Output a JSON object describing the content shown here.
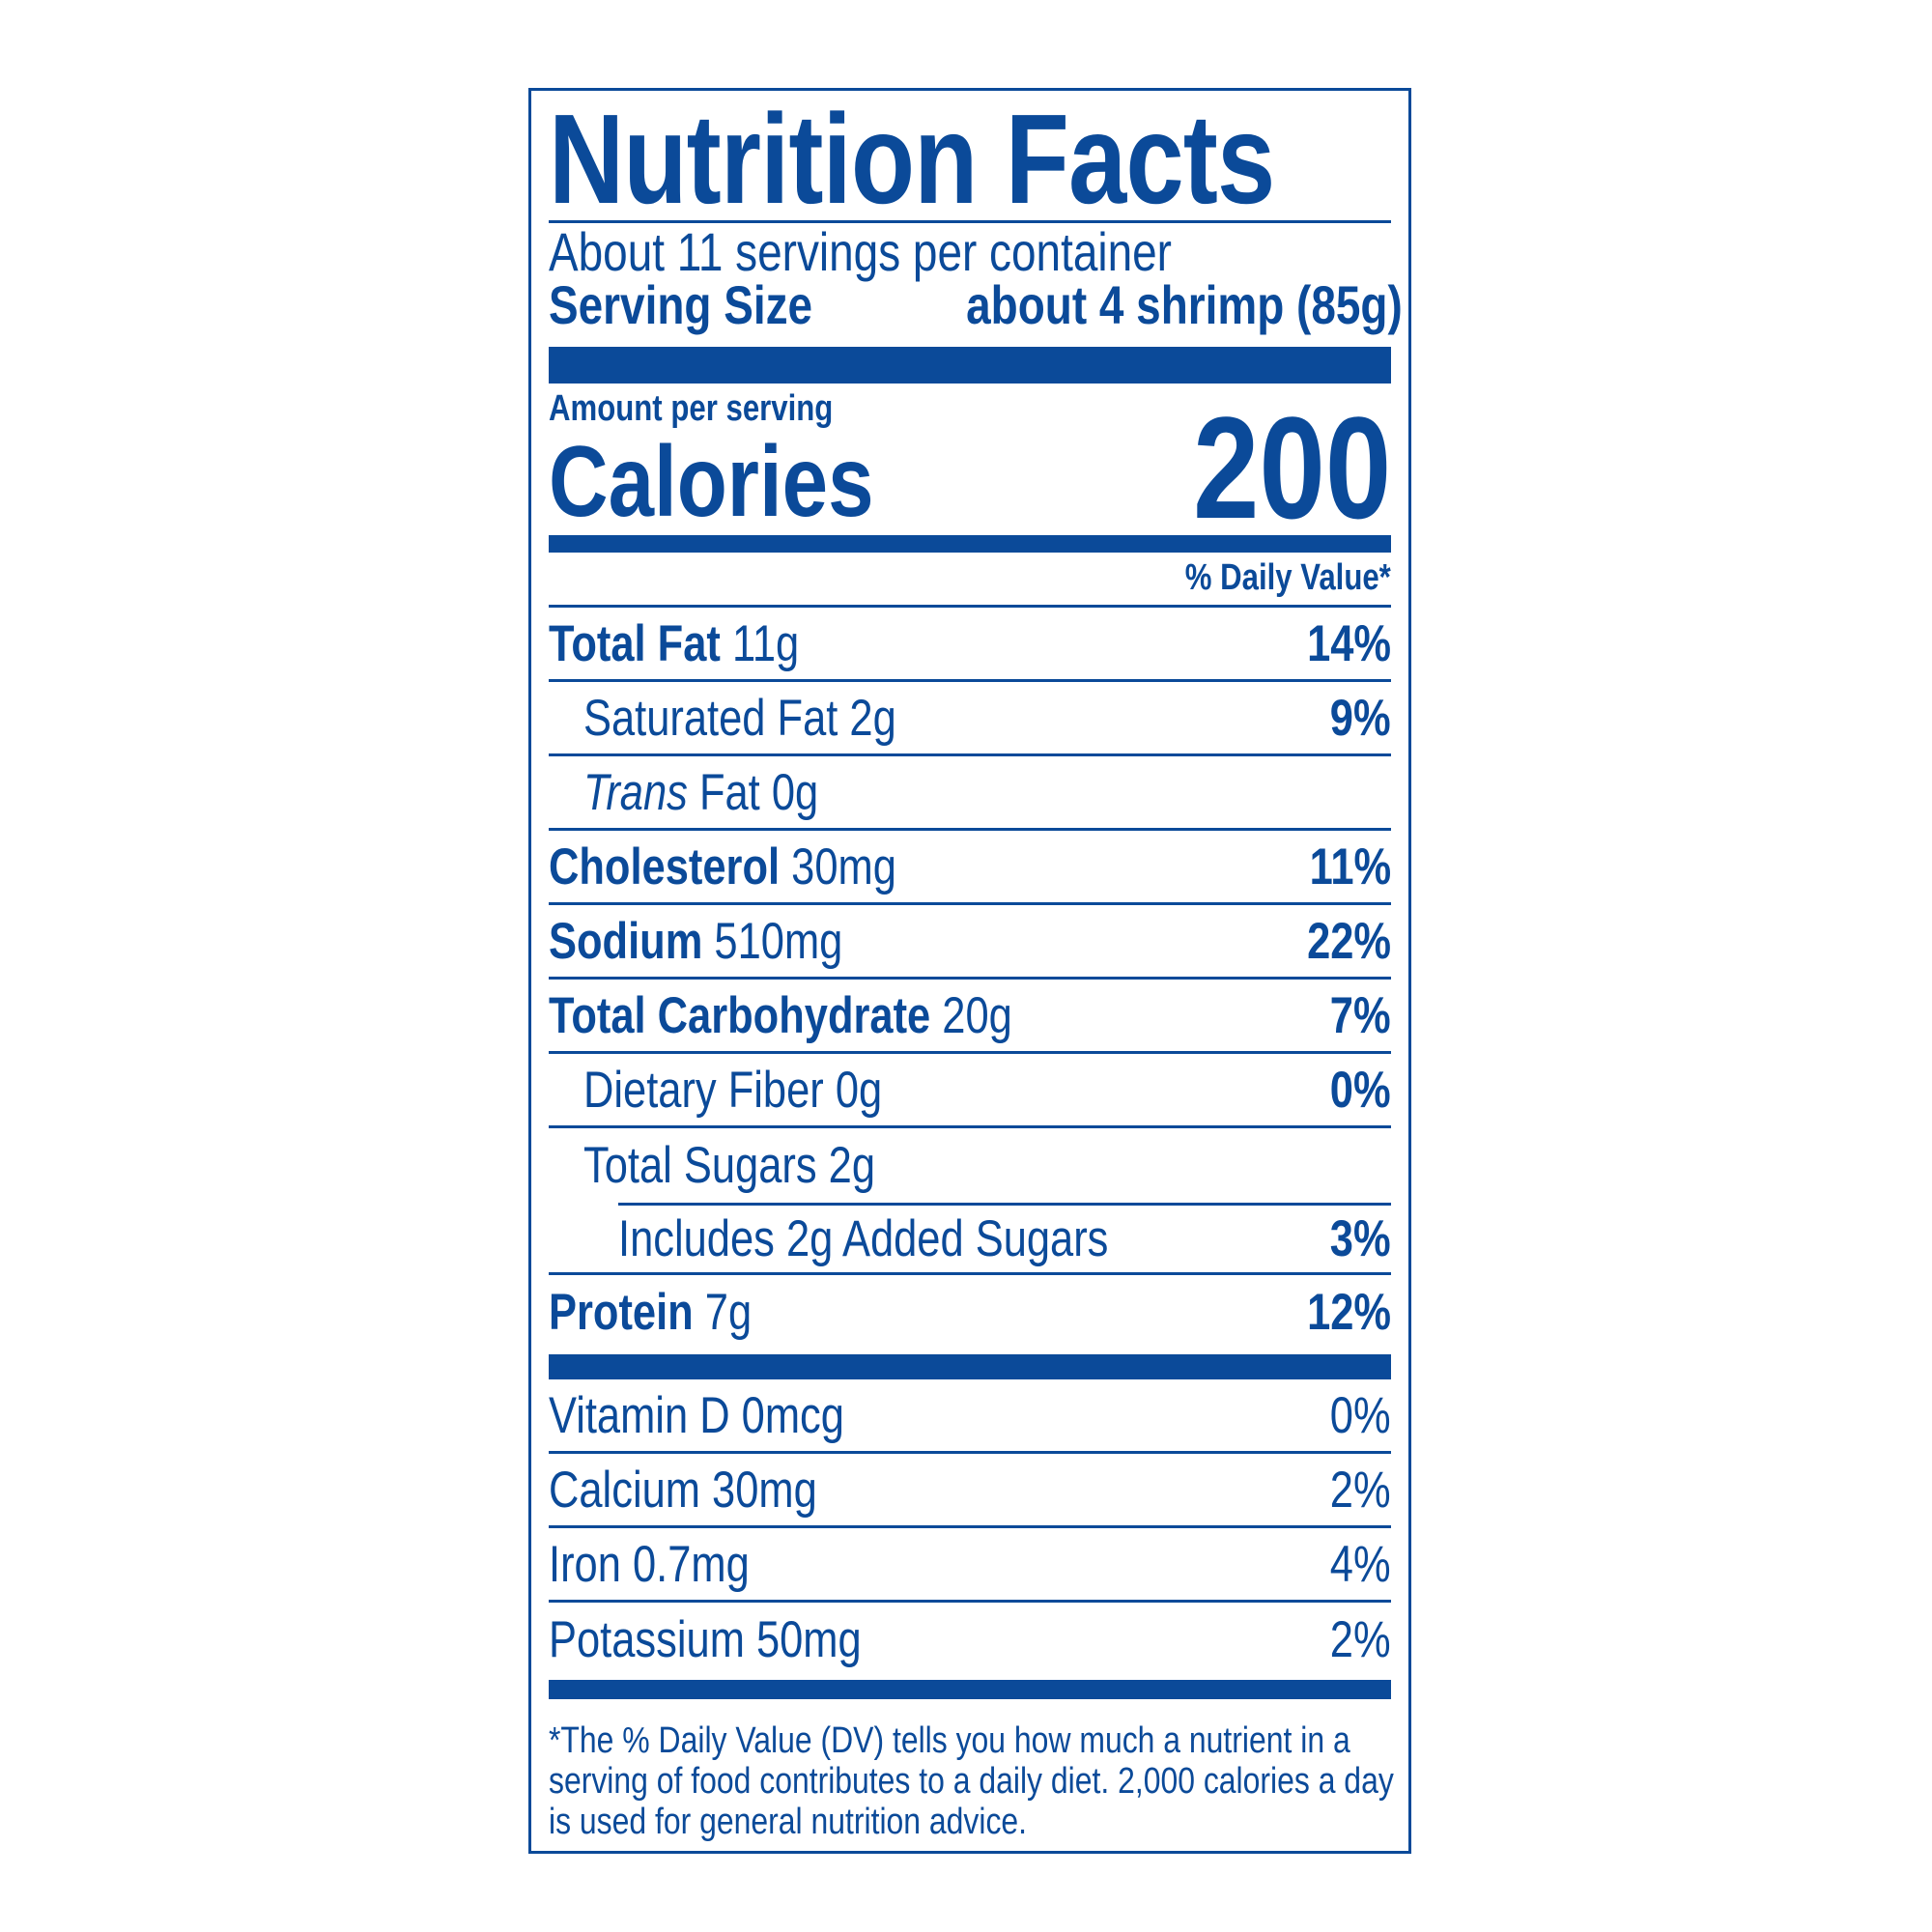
{
  "title": "Nutrition Facts",
  "servings": "About 11 servings per container",
  "serving_size": {
    "label": "Serving Size",
    "value": "about 4 shrimp (85g)"
  },
  "amount_per_serving": "Amount per serving",
  "calories": {
    "label": "Calories",
    "value": "200"
  },
  "dv_header": "% Daily Value*",
  "nutrients": [
    {
      "name": "Total Fat",
      "amount": "11g",
      "dv": "14%"
    },
    {
      "name": "Saturated Fat 2g",
      "dv": "9%"
    },
    {
      "name_italic": "Trans",
      "name": "Fat 0g"
    },
    {
      "name": "Cholesterol",
      "amount": "30mg",
      "dv": "11%"
    },
    {
      "name": "Sodium",
      "amount": "510mg",
      "dv": "22%"
    },
    {
      "name": "Total Carbohydrate",
      "amount": "20g",
      "dv": "7%"
    },
    {
      "name": "Dietary Fiber 0g",
      "dv": "0%"
    },
    {
      "name": "Total Sugars 2g"
    },
    {
      "name": "Includes 2g Added Sugars",
      "dv": "3%"
    },
    {
      "name": "Protein",
      "amount": "7g",
      "dv": "12%"
    }
  ],
  "vitamins": [
    {
      "name": "Vitamin D 0mcg",
      "dv": "0%"
    },
    {
      "name": "Calcium 30mg",
      "dv": "2%"
    },
    {
      "name": "Iron 0.7mg",
      "dv": "4%"
    },
    {
      "name": "Potassium 50mg",
      "dv": "2%"
    }
  ],
  "footnote": [
    "*The % Daily Value (DV) tells you how much a nutrient in a",
    "serving of food contributes to a daily diet. 2,000 calories a day",
    "is used for general nutrition advice."
  ],
  "colors": {
    "ink": "#0b4a99",
    "background": "#ffffff"
  }
}
